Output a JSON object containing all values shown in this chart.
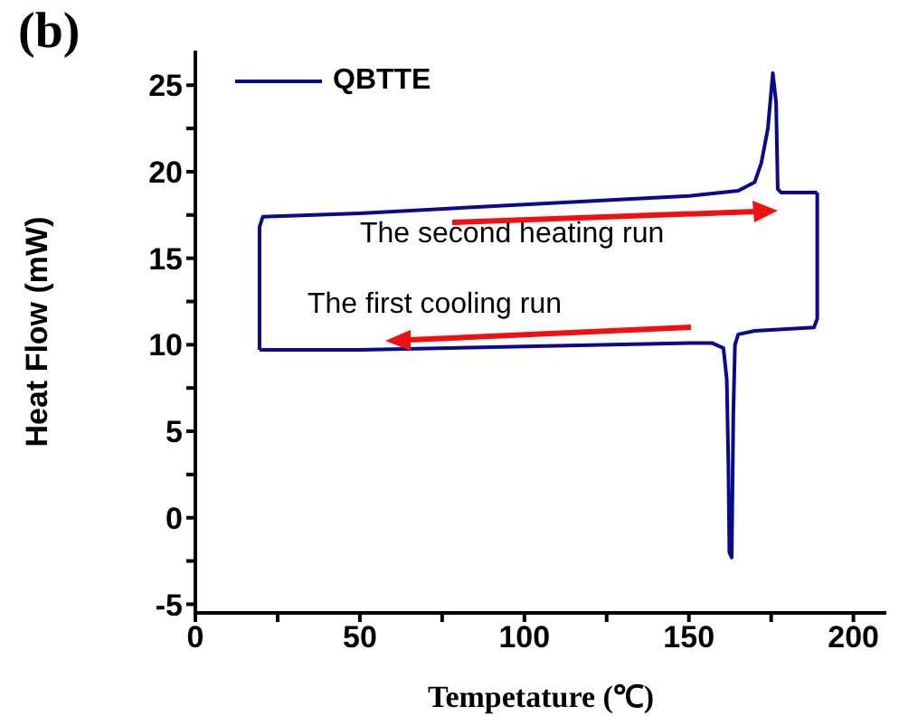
{
  "chart_data": {
    "type": "line",
    "title": "(b)",
    "xlabel": "Tempetature (℃)",
    "ylabel": "Heat Flow (mW)",
    "annotations": [
      "The second heating run",
      "The first cooling run"
    ],
    "series": [
      {
        "name": "QBTTE",
        "color": "#0a0a8c",
        "x": [
          19.5,
          19.5,
          20.5,
          50,
          100,
          150,
          165,
          170,
          172,
          174,
          175.5,
          176.5,
          177,
          178,
          189
        ],
        "values": [
          9.7,
          16.8,
          17.4,
          17.6,
          18.1,
          18.6,
          18.9,
          19.4,
          20.5,
          22.5,
          25.7,
          24,
          19,
          18.8,
          18.8
        ]
      },
      {
        "color": "#0a0a8c",
        "x": [
          19.5,
          50,
          100,
          150,
          157,
          160.5,
          161.5,
          162,
          162.3,
          163,
          163.5,
          164,
          165,
          170,
          188,
          189,
          189
        ],
        "values": [
          9.7,
          9.7,
          9.9,
          10.1,
          10.1,
          9.8,
          8,
          3,
          -2,
          -2.3,
          6,
          10,
          10.6,
          10.8,
          11,
          11.5,
          18.8
        ]
      }
    ],
    "xlim": [
      0,
      210
    ],
    "xticks": [
      0,
      {
        "value": 25,
        "label": null
      },
      50,
      {
        "value": 75,
        "label": null
      },
      100,
      {
        "value": 125,
        "label": null
      },
      150,
      {
        "value": 175,
        "label": null
      },
      200
    ],
    "ylim": [
      -5.5,
      27
    ],
    "yticks": [
      -5,
      {
        "value": -2.5,
        "label": null
      },
      0,
      {
        "value": 2.5,
        "label": null
      },
      5,
      {
        "value": 7.5,
        "label": null
      },
      10,
      {
        "value": 12.5,
        "label": null
      },
      15,
      {
        "value": 17.5,
        "label": null
      },
      20,
      {
        "value": 22.5,
        "label": null
      },
      25
    ],
    "grid": false,
    "legend": "top left",
    "marker": "none",
    "line_style": "solid"
  }
}
